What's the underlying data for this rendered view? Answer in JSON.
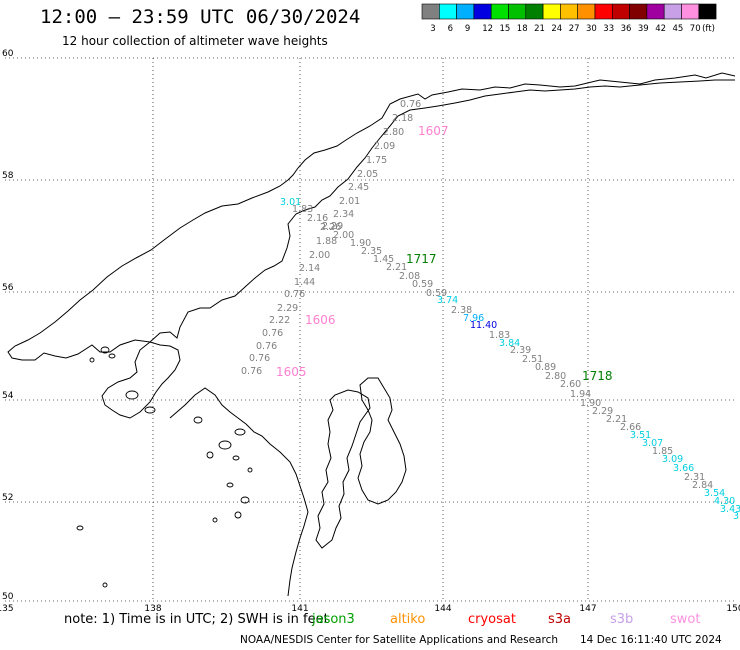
{
  "header": {
    "title": "12:00 – 23:59 UTC 06/30/2024",
    "subtitle": "12 hour collection of altimeter wave heights"
  },
  "legend": {
    "unit": "(ft)",
    "bins": [
      {
        "label": "3",
        "color": "#808080"
      },
      {
        "label": "6",
        "color": "#00ffff"
      },
      {
        "label": "9",
        "color": "#00b0ff"
      },
      {
        "label": "12",
        "color": "#0000e0"
      },
      {
        "label": "15",
        "color": "#00e000"
      },
      {
        "label": "18",
        "color": "#00c000"
      },
      {
        "label": "21",
        "color": "#008000"
      },
      {
        "label": "24",
        "color": "#ffff00"
      },
      {
        "label": "27",
        "color": "#ffc000"
      },
      {
        "label": "30",
        "color": "#ff9000"
      },
      {
        "label": "33",
        "color": "#ff0000"
      },
      {
        "label": "36",
        "color": "#c00000"
      },
      {
        "label": "39",
        "color": "#800000"
      },
      {
        "label": "42",
        "color": "#a000a0"
      },
      {
        "label": "45",
        "color": "#c8a0e8"
      },
      {
        "label": "70",
        "color": "#ff90e0"
      },
      {
        "label": "",
        "color": "#000000"
      }
    ]
  },
  "map": {
    "lon_ticks": [
      "135",
      "138",
      "141",
      "144",
      "147",
      "150"
    ],
    "lat_ticks": [
      "60",
      "58",
      "56",
      "54",
      "52",
      "50"
    ],
    "grid": true,
    "pass_labels": [
      {
        "text": "1607",
        "color": "#ff80d0"
      },
      {
        "text": "1717",
        "color": "#008000"
      },
      {
        "text": "1606",
        "color": "#ff80d0"
      },
      {
        "text": "1605",
        "color": "#ff80d0"
      },
      {
        "text": "1718",
        "color": "#008000"
      }
    ],
    "wave_labels": [
      {
        "text": "0.76",
        "color": "#808080"
      },
      {
        "text": "2.18",
        "color": "#808080"
      },
      {
        "text": "2.80",
        "color": "#808080"
      },
      {
        "text": "2.09",
        "color": "#808080"
      },
      {
        "text": "1.75",
        "color": "#808080"
      },
      {
        "text": "2.05",
        "color": "#808080"
      },
      {
        "text": "2.45",
        "color": "#808080"
      },
      {
        "text": "2.01",
        "color": "#808080"
      },
      {
        "text": "3.01",
        "color": "#00d0e0"
      },
      {
        "text": "1.83",
        "color": "#808080"
      },
      {
        "text": "2.34",
        "color": "#808080"
      },
      {
        "text": "2.16",
        "color": "#808080"
      },
      {
        "text": "2.29",
        "color": "#808080"
      },
      {
        "text": "2.26",
        "color": "#808080"
      },
      {
        "text": "2.00",
        "color": "#808080"
      },
      {
        "text": "1.88",
        "color": "#808080"
      },
      {
        "text": "1.90",
        "color": "#808080"
      },
      {
        "text": "2.35",
        "color": "#808080"
      },
      {
        "text": "2.00",
        "color": "#808080"
      },
      {
        "text": "1.45",
        "color": "#808080"
      },
      {
        "text": "2.21",
        "color": "#808080"
      },
      {
        "text": "2.14",
        "color": "#808080"
      },
      {
        "text": "2.08",
        "color": "#808080"
      },
      {
        "text": "1.44",
        "color": "#808080"
      },
      {
        "text": "0.59",
        "color": "#808080"
      },
      {
        "text": "0.59",
        "color": "#808080"
      },
      {
        "text": "0.76",
        "color": "#808080"
      },
      {
        "text": "3.74",
        "color": "#00d0e0"
      },
      {
        "text": "2.29",
        "color": "#808080"
      },
      {
        "text": "2.38",
        "color": "#808080"
      },
      {
        "text": "7.96",
        "color": "#00b0ff"
      },
      {
        "text": "2.22",
        "color": "#808080"
      },
      {
        "text": "11.40",
        "color": "#0000e0"
      },
      {
        "text": "0.76",
        "color": "#808080"
      },
      {
        "text": "1.83",
        "color": "#808080"
      },
      {
        "text": "3.84",
        "color": "#00d0e0"
      },
      {
        "text": "0.76",
        "color": "#808080"
      },
      {
        "text": "2.39",
        "color": "#808080"
      },
      {
        "text": "0.76",
        "color": "#808080"
      },
      {
        "text": "2.51",
        "color": "#808080"
      },
      {
        "text": "0.76",
        "color": "#808080"
      },
      {
        "text": "0.89",
        "color": "#808080"
      },
      {
        "text": "2.80",
        "color": "#808080"
      },
      {
        "text": "2.60",
        "color": "#808080"
      },
      {
        "text": "1.94",
        "color": "#808080"
      },
      {
        "text": "1.90",
        "color": "#808080"
      },
      {
        "text": "2.29",
        "color": "#808080"
      },
      {
        "text": "2.21",
        "color": "#808080"
      },
      {
        "text": "2.66",
        "color": "#808080"
      },
      {
        "text": "3.51",
        "color": "#00d0e0"
      },
      {
        "text": "3.07",
        "color": "#00d0e0"
      },
      {
        "text": "1.85",
        "color": "#808080"
      },
      {
        "text": "3.09",
        "color": "#00d0e0"
      },
      {
        "text": "3.66",
        "color": "#00d0e0"
      },
      {
        "text": "2.31",
        "color": "#808080"
      },
      {
        "text": "2.84",
        "color": "#808080"
      },
      {
        "text": "3.54",
        "color": "#00d0e0"
      },
      {
        "text": "4.30",
        "color": "#00d0e0"
      },
      {
        "text": "3.43",
        "color": "#00d0e0"
      },
      {
        "text": "3",
        "color": "#00d0e0"
      }
    ]
  },
  "footer": {
    "note": "note:  1) Time is in UTC; 2) SWH is in feet",
    "satellites": [
      {
        "name": "jason3",
        "color": "#00a000"
      },
      {
        "name": "altiko",
        "color": "#ff9000"
      },
      {
        "name": "cryosat",
        "color": "#ff0000"
      },
      {
        "name": "s3a",
        "color": "#c00000"
      },
      {
        "name": "s3b",
        "color": "#c8a0e8"
      },
      {
        "name": "swot",
        "color": "#ff90e0"
      }
    ],
    "credit": "NOAA/NESDIS Center for Satellite Applications and Research",
    "timestamp": "14 Dec 16:11:40 UTC 2024"
  }
}
